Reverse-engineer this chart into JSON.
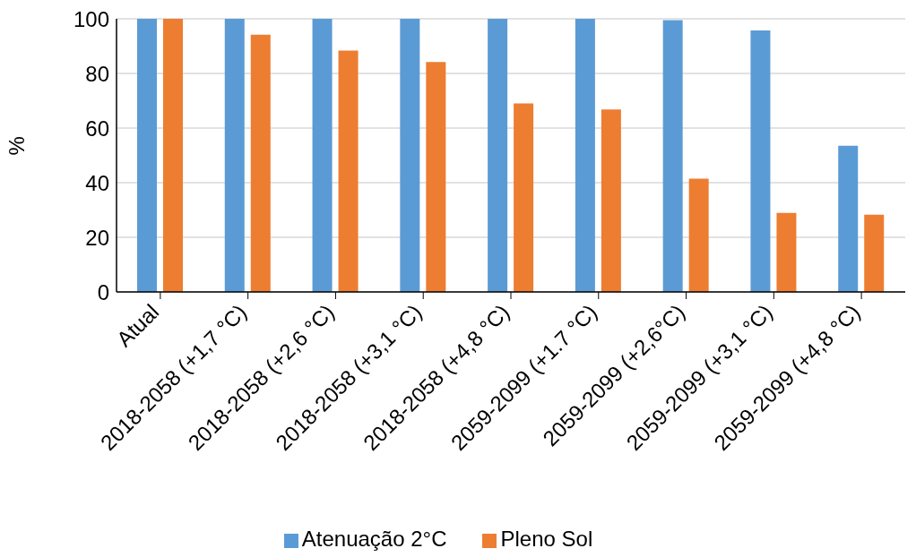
{
  "chart_data": {
    "type": "bar",
    "ylabel": "%",
    "categories": [
      "Atual",
      "2018-2058 (+1,7 °C)",
      "2018-2058 (+2,6 °C)",
      "2018-2058 (+3,1 °C)",
      "2018-2058 (+4,8 °C)",
      "2059-2099 (+1.7 °C)",
      "2059-2099 (+2,6°C)",
      "2059-2099 (+3,1 °C)",
      "2059-2099 (+4,8 °C)"
    ],
    "series": [
      {
        "name": "Atenuação 2°C",
        "color": "#5b9bd5",
        "values": [
          100,
          100,
          100,
          100,
          100,
          100,
          99.5,
          95.7,
          53.5
        ]
      },
      {
        "name": "Pleno Sol",
        "color": "#ed7d31",
        "values": [
          100,
          94.2,
          88.4,
          84.2,
          69,
          66.8,
          41.5,
          28.9,
          28.3
        ]
      }
    ],
    "ylim": [
      0,
      100
    ],
    "yticks": [
      0,
      20,
      40,
      60,
      80,
      100
    ],
    "grid": "y",
    "legend": "bottom"
  }
}
